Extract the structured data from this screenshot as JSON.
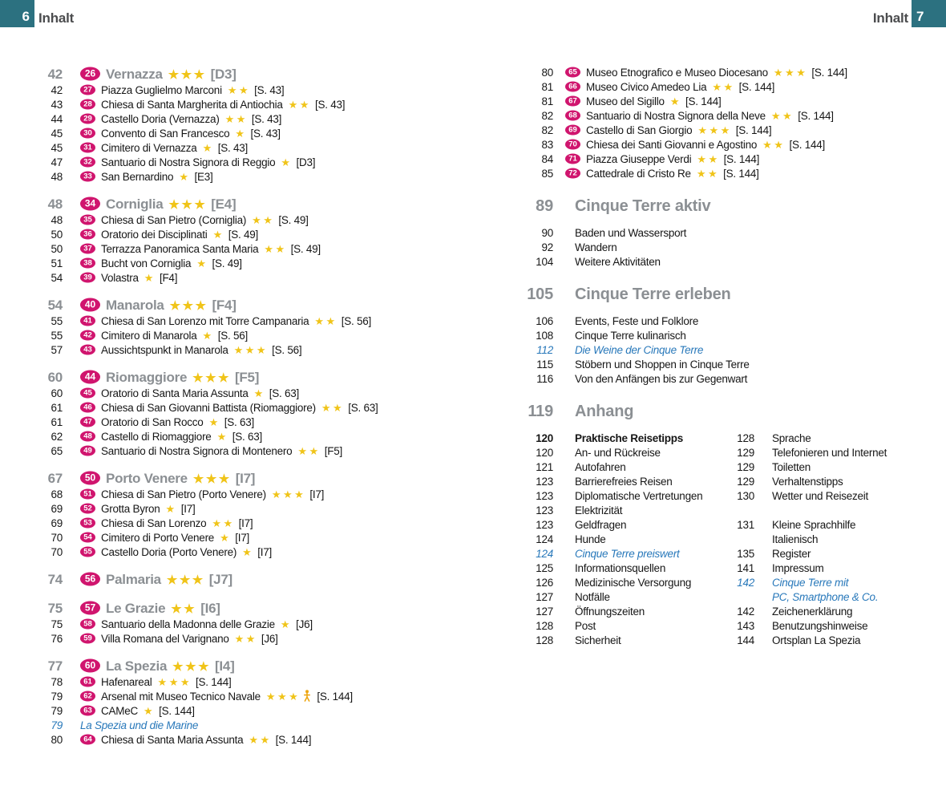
{
  "header_left": {
    "page_num": "6",
    "title": "Inhalt"
  },
  "header_right": {
    "page_num": "7",
    "title": "Inhalt"
  },
  "colors": {
    "teal_box": "#2c7180",
    "badge_pink": "#d0156e",
    "star_gold": "#f0c419",
    "section_gray": "#8b8f93",
    "special_blue": "#2878ba",
    "text": "#161616"
  },
  "left_column": {
    "sections": [
      {
        "header": {
          "page": "42",
          "badge": "26",
          "title": "Vernazza",
          "stars": 3,
          "ref": "[D3]"
        },
        "entries": [
          {
            "page": "42",
            "badge": "27",
            "title": "Piazza Guglielmo Marconi",
            "stars": 2,
            "ref": "[S. 43]"
          },
          {
            "page": "43",
            "badge": "28",
            "title": "Chiesa di Santa Margherita di Antiochia",
            "stars": 2,
            "ref": "[S. 43]"
          },
          {
            "page": "44",
            "badge": "29",
            "title": "Castello Doria (Vernazza)",
            "stars": 2,
            "ref": "[S. 43]"
          },
          {
            "page": "45",
            "badge": "30",
            "title": "Convento di San Francesco",
            "stars": 1,
            "ref": "[S. 43]"
          },
          {
            "page": "45",
            "badge": "31",
            "title": "Cimitero di Vernazza",
            "stars": 1,
            "ref": "[S. 43]"
          },
          {
            "page": "47",
            "badge": "32",
            "title": "Santuario di Nostra Signora di Reggio",
            "stars": 1,
            "ref": "[D3]"
          },
          {
            "page": "48",
            "badge": "33",
            "title": "San Bernardino",
            "stars": 1,
            "ref": "[E3]"
          }
        ]
      },
      {
        "header": {
          "page": "48",
          "badge": "34",
          "title": "Corniglia",
          "stars": 3,
          "ref": "[E4]"
        },
        "entries": [
          {
            "page": "48",
            "badge": "35",
            "title": "Chiesa di San Pietro (Corniglia)",
            "stars": 2,
            "ref": "[S. 49]"
          },
          {
            "page": "50",
            "badge": "36",
            "title": "Oratorio dei Disciplinati",
            "stars": 1,
            "ref": "[S. 49]"
          },
          {
            "page": "50",
            "badge": "37",
            "title": "Terrazza Panoramica Santa Maria",
            "stars": 2,
            "ref": "[S. 49]"
          },
          {
            "page": "51",
            "badge": "38",
            "title": "Bucht von Corniglia",
            "stars": 1,
            "ref": "[S. 49]"
          },
          {
            "page": "54",
            "badge": "39",
            "title": "Volastra",
            "stars": 1,
            "ref": "[F4]"
          }
        ]
      },
      {
        "header": {
          "page": "54",
          "badge": "40",
          "title": "Manarola",
          "stars": 3,
          "ref": "[F4]"
        },
        "entries": [
          {
            "page": "55",
            "badge": "41",
            "title": "Chiesa di San Lorenzo mit Torre Campanaria",
            "stars": 2,
            "ref": "[S. 56]"
          },
          {
            "page": "55",
            "badge": "42",
            "title": "Cimitero di Manarola",
            "stars": 1,
            "ref": "[S. 56]"
          },
          {
            "page": "57",
            "badge": "43",
            "title": "Aussichtspunkt in Manarola",
            "stars": 3,
            "ref": "[S. 56]"
          }
        ]
      },
      {
        "header": {
          "page": "60",
          "badge": "44",
          "title": "Riomaggiore",
          "stars": 3,
          "ref": "[F5]"
        },
        "entries": [
          {
            "page": "60",
            "badge": "45",
            "title": "Oratorio di Santa Maria Assunta",
            "stars": 1,
            "ref": "[S. 63]"
          },
          {
            "page": "61",
            "badge": "46",
            "title": "Chiesa di San Giovanni Battista (Riomaggiore)",
            "stars": 2,
            "ref": "[S. 63]"
          },
          {
            "page": "61",
            "badge": "47",
            "title": "Oratorio di San Rocco",
            "stars": 1,
            "ref": "[S. 63]"
          },
          {
            "page": "62",
            "badge": "48",
            "title": "Castello di Riomaggiore",
            "stars": 1,
            "ref": "[S. 63]"
          },
          {
            "page": "65",
            "badge": "49",
            "title": "Santuario di Nostra Signora di Montenero",
            "stars": 2,
            "ref": "[F5]"
          }
        ]
      },
      {
        "header": {
          "page": "67",
          "badge": "50",
          "title": "Porto Venere",
          "stars": 3,
          "ref": "[I7]"
        },
        "entries": [
          {
            "page": "68",
            "badge": "51",
            "title": "Chiesa di San Pietro (Porto Venere)",
            "stars": 3,
            "ref": "[I7]"
          },
          {
            "page": "69",
            "badge": "52",
            "title": "Grotta Byron",
            "stars": 1,
            "ref": "[I7]"
          },
          {
            "page": "69",
            "badge": "53",
            "title": "Chiesa di San Lorenzo",
            "stars": 2,
            "ref": "[I7]"
          },
          {
            "page": "70",
            "badge": "54",
            "title": "Cimitero di Porto Venere",
            "stars": 1,
            "ref": "[I7]"
          },
          {
            "page": "70",
            "badge": "55",
            "title": "Castello Doria (Porto Venere)",
            "stars": 1,
            "ref": "[I7]"
          }
        ]
      },
      {
        "header": {
          "page": "74",
          "badge": "56",
          "title": "Palmaria",
          "stars": 3,
          "ref": "[J7]"
        },
        "entries": []
      },
      {
        "header": {
          "page": "75",
          "badge": "57",
          "title": "Le Grazie",
          "stars": 2,
          "ref": "[I6]"
        },
        "entries": [
          {
            "page": "75",
            "badge": "58",
            "title": "Santuario della Madonna delle Grazie",
            "stars": 1,
            "ref": "[J6]"
          },
          {
            "page": "76",
            "badge": "59",
            "title": "Villa Romana del Varignano",
            "stars": 2,
            "ref": "[J6]"
          }
        ]
      },
      {
        "header": {
          "page": "77",
          "badge": "60",
          "title": "La Spezia",
          "stars": 3,
          "ref": "[I4]"
        },
        "entries": [
          {
            "page": "78",
            "badge": "61",
            "title": "Hafenareal",
            "stars": 3,
            "ref": "[S. 144]"
          },
          {
            "page": "79",
            "badge": "62",
            "title": "Arsenal mit Museo Tecnico Navale",
            "stars": 3,
            "person_icon": true,
            "ref": "[S. 144]"
          },
          {
            "page": "79",
            "badge": "63",
            "title": "CAMeC",
            "stars": 1,
            "ref": "[S. 144]"
          },
          {
            "page": "79",
            "special": true,
            "title": "La Spezia und die Marine"
          },
          {
            "page": "80",
            "badge": "64",
            "title": "Chiesa di Santa Maria Assunta",
            "stars": 2,
            "ref": "[S. 144]"
          }
        ]
      }
    ]
  },
  "right_column": {
    "entries_top": [
      {
        "page": "80",
        "badge": "65",
        "title": "Museo Etnografico e Museo Diocesano",
        "stars": 3,
        "ref": "[S. 144]"
      },
      {
        "page": "81",
        "badge": "66",
        "title": "Museo Civico Amedeo Lia",
        "stars": 2,
        "ref": "[S. 144]"
      },
      {
        "page": "81",
        "badge": "67",
        "title": "Museo del Sigillo",
        "stars": 1,
        "ref": "[S. 144]"
      },
      {
        "page": "82",
        "badge": "68",
        "title": "Santuario di Nostra Signora della Neve",
        "stars": 2,
        "ref": "[S. 144]"
      },
      {
        "page": "82",
        "badge": "69",
        "title": "Castello di San Giorgio",
        "stars": 3,
        "ref": "[S. 144]"
      },
      {
        "page": "83",
        "badge": "70",
        "title": "Chiesa dei Santi Giovanni e Agostino",
        "stars": 2,
        "ref": "[S. 144]"
      },
      {
        "page": "84",
        "badge": "71",
        "title": "Piazza Giuseppe Verdi",
        "stars": 2,
        "ref": "[S. 144]"
      },
      {
        "page": "85",
        "badge": "72",
        "title": "Cattedrale di Cristo Re",
        "stars": 2,
        "ref": "[S. 144]"
      }
    ],
    "major_sections": [
      {
        "page": "89",
        "title": "Cinque Terre aktiv",
        "rows": [
          {
            "page": "90",
            "label": "Baden und Wassersport"
          },
          {
            "page": "92",
            "label": "Wandern"
          },
          {
            "page": "104",
            "label": "Weitere Aktivitäten"
          }
        ]
      },
      {
        "page": "105",
        "title": "Cinque Terre erleben",
        "rows": [
          {
            "page": "106",
            "label": "Events, Feste und Folklore"
          },
          {
            "page": "108",
            "label": "Cinque Terre kulinarisch"
          },
          {
            "page": "112",
            "label": "Die Weine der Cinque Terre",
            "style": "italic"
          },
          {
            "page": "115",
            "label": "Stöbern und Shoppen in Cinque Terre"
          },
          {
            "page": "116",
            "label": "Von den Anfängen bis zur Gegenwart"
          }
        ]
      },
      {
        "page": "119",
        "title": "Anhang",
        "table_rows": [
          {
            "l_page": "120",
            "l_label": "Praktische Reisetipps",
            "l_style": "bold",
            "r_page": "128",
            "r_label": "Sprache"
          },
          {
            "l_page": "120",
            "l_label": "An- und Rückreise",
            "r_page": "129",
            "r_label": "Telefonieren und Internet"
          },
          {
            "l_page": "121",
            "l_label": "Autofahren",
            "r_page": "129",
            "r_label": "Toiletten"
          },
          {
            "l_page": "123",
            "l_label": "Barrierefreies Reisen",
            "r_page": "129",
            "r_label": "Verhaltenstipps"
          },
          {
            "l_page": "123",
            "l_label": "Diplomatische Vertretungen",
            "r_page": "130",
            "r_label": "Wetter und Reisezeit"
          },
          {
            "l_page": "123",
            "l_label": "Elektrizität",
            "r_page": "",
            "r_label": ""
          },
          {
            "l_page": "123",
            "l_label": "Geldfragen",
            "r_page": "131",
            "r_label": "Kleine Sprachhilfe"
          },
          {
            "l_page": "124",
            "l_label": "Hunde",
            "r_page": "",
            "r_label": "Italienisch"
          },
          {
            "l_page": "124",
            "l_label": "Cinque Terre preiswert",
            "l_style": "italic",
            "r_page": "135",
            "r_label": "Register"
          },
          {
            "l_page": "125",
            "l_label": "Informationsquellen",
            "r_page": "141",
            "r_label": "Impressum"
          },
          {
            "l_page": "126",
            "l_label": "Medizinische Versorgung",
            "r_page": "142",
            "r_label": "Cinque Terre mit",
            "r_style": "italic"
          },
          {
            "l_page": "127",
            "l_label": "Notfälle",
            "r_page": "",
            "r_label": "PC, Smartphone & Co.",
            "r_style": "italic"
          },
          {
            "l_page": "127",
            "l_label": "Öffnungszeiten",
            "r_page": "142",
            "r_label": "Zeichenerklärung"
          },
          {
            "l_page": "128",
            "l_label": "Post",
            "r_page": "143",
            "r_label": "Benutzungshinweise"
          },
          {
            "l_page": "128",
            "l_label": "Sicherheit",
            "r_page": "144",
            "r_label": "Ortsplan La Spezia"
          }
        ]
      }
    ]
  }
}
